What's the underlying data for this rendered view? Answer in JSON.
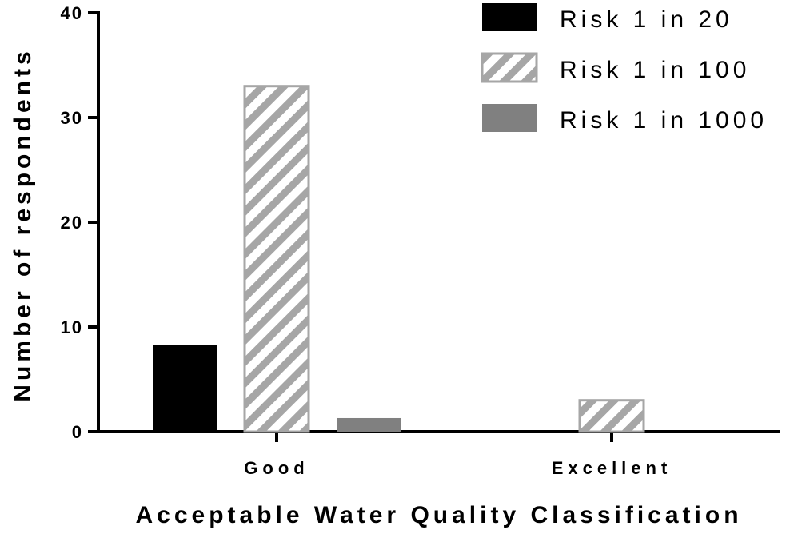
{
  "chart_data": {
    "type": "bar",
    "categories": [
      "Good",
      "Excellent"
    ],
    "series": [
      {
        "name": "Risk 1 in 20",
        "values": [
          8.3,
          0
        ],
        "color": "#000000",
        "pattern": "solid"
      },
      {
        "name": "Risk 1 in 100",
        "values": [
          33,
          3
        ],
        "color": "#a6a6a6",
        "pattern": "hatched"
      },
      {
        "name": "Risk 1 in 1000",
        "values": [
          1.3,
          0
        ],
        "color": "#808080",
        "pattern": "solid"
      }
    ],
    "xlabel": "Acceptable Water Quality Classification",
    "ylabel": "Number of respondents",
    "ylim": [
      0,
      40
    ],
    "yticks": [
      0,
      10,
      20,
      30,
      40
    ],
    "grid": false,
    "legend_position": "top-right"
  }
}
